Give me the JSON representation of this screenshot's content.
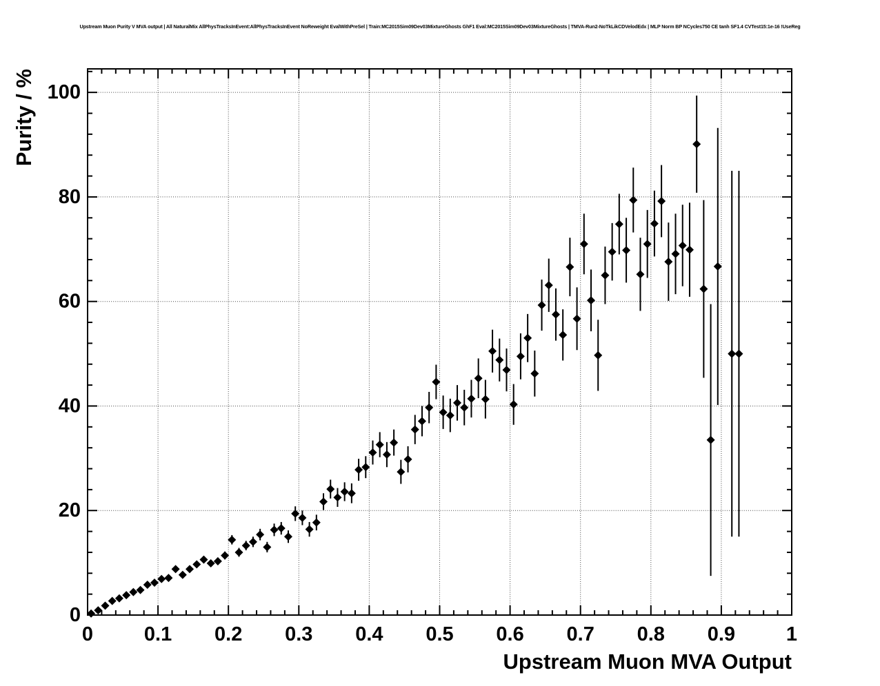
{
  "title": {
    "text": "Upstream Muon Purity V MVA output | All NaturalMix AllPhysTracksInEvent:AllPhysTracksInEvent NoReweight EvalWithPreSel | Train:MC2015Sim09Dev03MixtureGhosts GhF1 Eval:MC2015Sim09Dev03MixtureGhosts | TMVA-Run2-NoTkLikCDVelodEdx | MLP Norm BP NCycles750 CE tanh SF1.4 CVTest15:1e-16 !UseReg"
  },
  "chart_data": {
    "type": "scatter",
    "title": "Upstream Muon Purity V MVA output",
    "xlabel": "Upstream Muon MVA Output",
    "ylabel": "Purity / %",
    "xlim": [
      0,
      1
    ],
    "ylim": [
      0,
      104.5
    ],
    "x_tick_values": [
      0,
      0.1,
      0.2,
      0.3,
      0.4,
      0.5,
      0.6,
      0.7,
      0.8,
      0.9,
      1
    ],
    "x_tick_labels": [
      "0",
      "0.1",
      "0.2",
      "0.3",
      "0.4",
      "0.5",
      "0.6",
      "0.7",
      "0.8",
      "0.9",
      "1"
    ],
    "y_tick_values": [
      0,
      20,
      40,
      60,
      80,
      100
    ],
    "y_tick_labels": [
      "0",
      "20",
      "40",
      "60",
      "80",
      "100"
    ],
    "x_minor_step": 0.02,
    "y_minor_step": 4,
    "grid": "dotted-at-major-ticks",
    "legend": "none",
    "marker": "filled-diamond",
    "error_bars": "vertical-with-horizontal-bin-width",
    "colors": {
      "marker": "#000000",
      "frame": "#000000",
      "grid": "#444444",
      "background": "#ffffff"
    },
    "points_format": [
      "x",
      "purity_percent",
      "error"
    ],
    "points": [
      [
        0.005,
        0.3,
        0.1
      ],
      [
        0.015,
        0.9,
        0.15
      ],
      [
        0.025,
        1.8,
        0.2
      ],
      [
        0.035,
        2.7,
        0.25
      ],
      [
        0.045,
        3.2,
        0.3
      ],
      [
        0.055,
        3.8,
        0.3
      ],
      [
        0.065,
        4.4,
        0.35
      ],
      [
        0.075,
        4.8,
        0.35
      ],
      [
        0.085,
        5.8,
        0.4
      ],
      [
        0.095,
        6.2,
        0.4
      ],
      [
        0.105,
        6.9,
        0.45
      ],
      [
        0.115,
        7.1,
        0.45
      ],
      [
        0.125,
        8.8,
        0.5
      ],
      [
        0.135,
        7.7,
        0.5
      ],
      [
        0.145,
        8.8,
        0.55
      ],
      [
        0.155,
        9.7,
        0.6
      ],
      [
        0.165,
        10.6,
        0.65
      ],
      [
        0.175,
        9.9,
        0.65
      ],
      [
        0.185,
        10.3,
        0.7
      ],
      [
        0.195,
        11.4,
        0.75
      ],
      [
        0.205,
        14.4,
        0.9
      ],
      [
        0.215,
        12.0,
        0.85
      ],
      [
        0.225,
        13.3,
        0.9
      ],
      [
        0.235,
        14.0,
        1.0
      ],
      [
        0.245,
        15.4,
        1.1
      ],
      [
        0.255,
        13.0,
        1.0
      ],
      [
        0.265,
        16.3,
        1.2
      ],
      [
        0.275,
        16.6,
        1.2
      ],
      [
        0.285,
        15.0,
        1.2
      ],
      [
        0.295,
        19.4,
        1.4
      ],
      [
        0.305,
        18.6,
        1.4
      ],
      [
        0.315,
        16.4,
        1.4
      ],
      [
        0.325,
        17.7,
        1.5
      ],
      [
        0.335,
        21.7,
        1.6
      ],
      [
        0.345,
        24.1,
        1.8
      ],
      [
        0.355,
        22.5,
        1.8
      ],
      [
        0.365,
        23.6,
        1.8
      ],
      [
        0.375,
        23.3,
        1.9
      ],
      [
        0.385,
        27.8,
        2.1
      ],
      [
        0.395,
        28.3,
        2.1
      ],
      [
        0.405,
        31.1,
        2.3
      ],
      [
        0.415,
        32.6,
        2.4
      ],
      [
        0.425,
        30.7,
        2.4
      ],
      [
        0.435,
        33.0,
        2.5
      ],
      [
        0.445,
        27.4,
        2.3
      ],
      [
        0.455,
        29.8,
        2.5
      ],
      [
        0.465,
        35.5,
        2.8
      ],
      [
        0.475,
        37.1,
        2.9
      ],
      [
        0.485,
        39.7,
        3.0
      ],
      [
        0.495,
        44.6,
        3.3
      ],
      [
        0.505,
        38.8,
        3.2
      ],
      [
        0.515,
        38.2,
        3.2
      ],
      [
        0.525,
        40.6,
        3.4
      ],
      [
        0.535,
        39.7,
        3.4
      ],
      [
        0.545,
        41.4,
        3.6
      ],
      [
        0.555,
        45.3,
        3.8
      ],
      [
        0.565,
        41.3,
        3.7
      ],
      [
        0.575,
        50.5,
        4.1
      ],
      [
        0.585,
        48.8,
        4.1
      ],
      [
        0.595,
        46.9,
        4.1
      ],
      [
        0.605,
        40.3,
        3.9
      ],
      [
        0.615,
        49.5,
        4.4
      ],
      [
        0.625,
        53.0,
        4.6
      ],
      [
        0.635,
        46.2,
        4.4
      ],
      [
        0.645,
        59.3,
        4.9
      ],
      [
        0.655,
        63.1,
        5.1
      ],
      [
        0.665,
        57.5,
        5.0
      ],
      [
        0.675,
        53.6,
        4.9
      ],
      [
        0.685,
        66.6,
        5.6
      ],
      [
        0.695,
        56.7,
        6.0
      ],
      [
        0.705,
        71.0,
        5.8
      ],
      [
        0.715,
        60.2,
        5.9
      ],
      [
        0.725,
        49.7,
        6.8
      ],
      [
        0.735,
        65.0,
        5.5
      ],
      [
        0.745,
        69.5,
        5.5
      ],
      [
        0.755,
        74.8,
        5.8
      ],
      [
        0.765,
        69.8,
        6.2
      ],
      [
        0.775,
        79.4,
        6.2
      ],
      [
        0.785,
        65.2,
        7.0
      ],
      [
        0.795,
        71.0,
        6.5
      ],
      [
        0.805,
        74.9,
        6.3
      ],
      [
        0.815,
        79.2,
        6.9
      ],
      [
        0.825,
        67.6,
        7.5
      ],
      [
        0.835,
        69.1,
        7.7
      ],
      [
        0.845,
        70.7,
        7.8
      ],
      [
        0.855,
        69.9,
        9.0
      ],
      [
        0.865,
        90.1,
        9.3
      ],
      [
        0.875,
        62.4,
        17.0
      ],
      [
        0.885,
        33.5,
        26.0
      ],
      [
        0.895,
        66.7,
        26.5
      ],
      [
        0.915,
        50.0,
        35.0
      ],
      [
        0.925,
        50.0,
        35.0
      ]
    ]
  }
}
